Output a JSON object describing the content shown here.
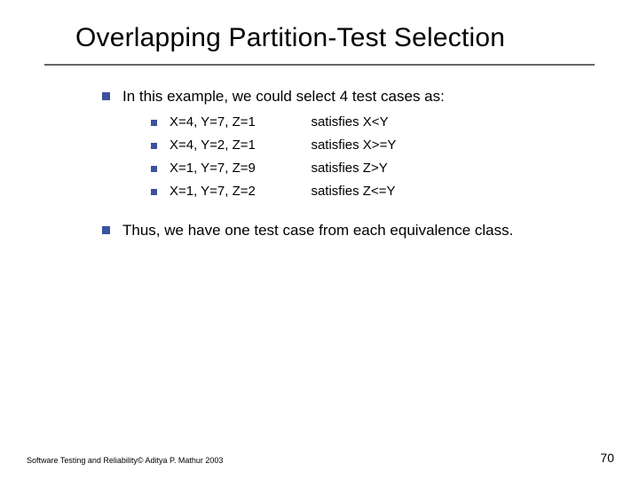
{
  "title": "Overlapping Partition-Test Selection",
  "colors": {
    "bullet": "#3d529e",
    "divider": "#666666",
    "text": "#000000",
    "background": "#ffffff"
  },
  "fontsizes": {
    "title": 30,
    "body": 17,
    "sub": 15,
    "footer": 9,
    "pagenum": 14
  },
  "intro": "In this example, we could select 4 test cases as:",
  "cases": [
    {
      "assign": "X=4, Y=7, Z=1",
      "sat": "satisfies X<Y"
    },
    {
      "assign": "X=4, Y=2, Z=1",
      "sat": "satisfies X>=Y"
    },
    {
      "assign": "X=1, Y=7, Z=9",
      "sat": "satisfies Z>Y"
    },
    {
      "assign": "X=1, Y=7, Z=2",
      "sat": "satisfies Z<=Y"
    }
  ],
  "conclusion": "Thus, we have one test case from each equivalence class.",
  "footer": "Software Testing and Reliability© Aditya P. Mathur 2003",
  "page_number": "70"
}
